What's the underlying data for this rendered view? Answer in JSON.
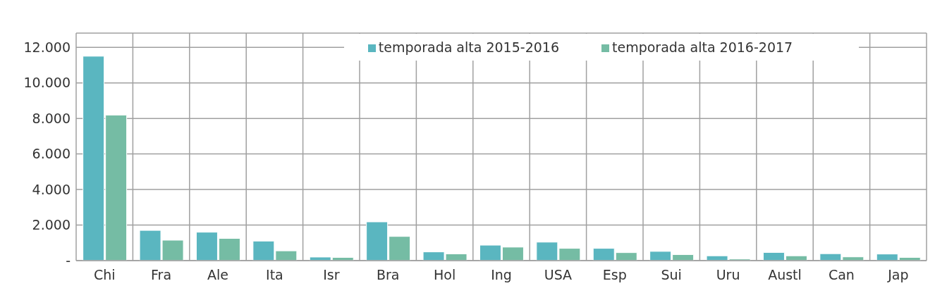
{
  "chart_data": {
    "type": "bar",
    "categories": [
      "Chi",
      "Fra",
      "Ale",
      "Ita",
      "Isr",
      "Bra",
      "Hol",
      "Ing",
      "USA",
      "Esp",
      "Sui",
      "Uru",
      "Austl",
      "Can",
      "Jap"
    ],
    "series": [
      {
        "name": "temporada alta 2015-2016",
        "color": "#5ab6c0",
        "values": [
          11500,
          1700,
          1600,
          1100,
          200,
          2180,
          490,
          870,
          1040,
          690,
          520,
          270,
          460,
          390,
          370
        ]
      },
      {
        "name": "temporada alta 2016-2017",
        "color": "#75bca4",
        "values": [
          8190,
          1150,
          1250,
          550,
          180,
          1360,
          380,
          760,
          690,
          450,
          340,
          90,
          270,
          210,
          180
        ]
      }
    ],
    "ylim": [
      0,
      12800
    ],
    "yticks": [
      {
        "value": 0,
        "label": "-"
      },
      {
        "value": 2000,
        "label": "2.000"
      },
      {
        "value": 4000,
        "label": "4.000"
      },
      {
        "value": 6000,
        "label": "6.000"
      },
      {
        "value": 8000,
        "label": "8.000"
      },
      {
        "value": 10000,
        "label": "10.000"
      },
      {
        "value": 12000,
        "label": "12.000"
      }
    ],
    "grid": true,
    "legend": "top"
  }
}
